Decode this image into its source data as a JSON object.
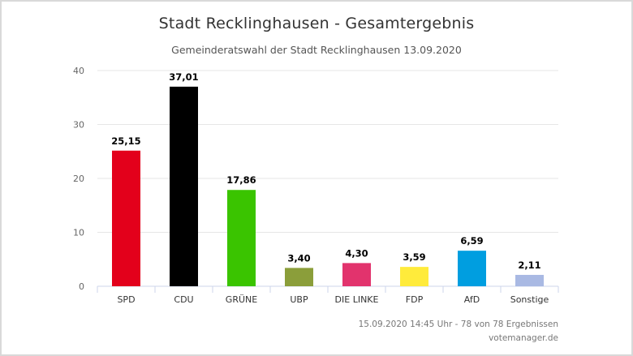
{
  "header": {
    "title": "Stadt Recklinghausen - Gesamtergebnis",
    "subtitle": "Gemeinderatswahl der Stadt Recklinghausen 13.09.2020"
  },
  "footer": {
    "status": "15.09.2020 14:45 Uhr - 78 von 78 Ergebnissen",
    "credit": "votemanager.de"
  },
  "chart_data": {
    "type": "bar",
    "title": "Stadt Recklinghausen - Gesamtergebnis",
    "subtitle": "Gemeinderatswahl der Stadt Recklinghausen 13.09.2020",
    "categories": [
      "SPD",
      "CDU",
      "GRÜNE",
      "UBP",
      "DIE LINKE",
      "FDP",
      "AfD",
      "Sonstige"
    ],
    "values": [
      25.15,
      37.01,
      17.86,
      3.4,
      4.3,
      3.59,
      6.59,
      2.11
    ],
    "data_labels": [
      "25,15",
      "37,01",
      "17,86",
      "3,40",
      "4,30",
      "3,59",
      "6,59",
      "2,11"
    ],
    "colors": [
      "#e3001b",
      "#000000",
      "#3ac400",
      "#8b9e3a",
      "#e2336d",
      "#ffeb3b",
      "#009ee0",
      "#a9b9e3"
    ],
    "ylim": [
      0,
      40
    ],
    "yticks": [
      0,
      10,
      20,
      30,
      40
    ],
    "ytick_labels": [
      "0",
      "10",
      "20",
      "30",
      "40"
    ],
    "grid": true,
    "legend": "none"
  }
}
